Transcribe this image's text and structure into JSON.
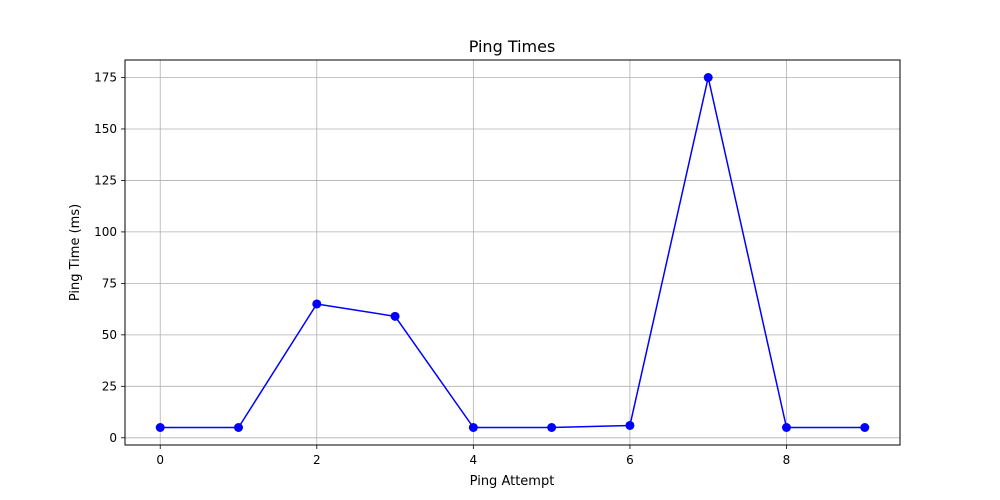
{
  "chart_data": {
    "type": "line",
    "title": "Ping Times",
    "xlabel": "Ping Attempt",
    "ylabel": "Ping Time (ms)",
    "x": [
      0,
      1,
      2,
      3,
      4,
      5,
      6,
      7,
      8,
      9
    ],
    "series": [
      {
        "values": [
          5,
          5,
          65,
          59,
          5,
          5,
          6,
          175,
          5,
          5
        ],
        "color": "#0000ff",
        "marker": "circle"
      }
    ],
    "xlim": [
      -0.45,
      9.45
    ],
    "ylim": [
      -3.5,
      183.5
    ],
    "xticks": [
      "0",
      "2",
      "4",
      "6",
      "8"
    ],
    "yticks": [
      "0",
      "25",
      "50",
      "75",
      "100",
      "125",
      "150",
      "175"
    ],
    "grid": true,
    "legend": "none"
  }
}
